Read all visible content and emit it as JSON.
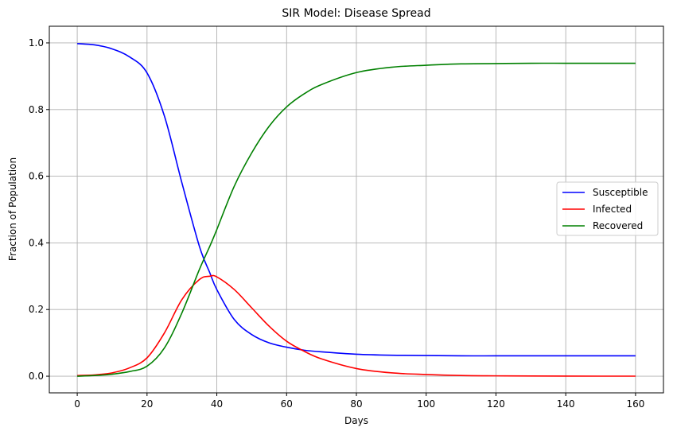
{
  "chart_data": {
    "type": "line",
    "title": "SIR Model: Disease Spread",
    "xlabel": "Days",
    "ylabel": "Fraction of Population",
    "xlim": [
      -8,
      168
    ],
    "ylim": [
      -0.05,
      1.05
    ],
    "xticks": [
      0,
      20,
      40,
      60,
      80,
      100,
      120,
      140,
      160
    ],
    "yticks": [
      0.0,
      0.2,
      0.4,
      0.6,
      0.8,
      1.0
    ],
    "grid": true,
    "legend_position": "center-right",
    "x": [
      0,
      5,
      10,
      15,
      20,
      25,
      30,
      35,
      38,
      40,
      45,
      50,
      55,
      60,
      65,
      70,
      80,
      90,
      100,
      110,
      120,
      130,
      140,
      150,
      160
    ],
    "series": [
      {
        "name": "Susceptible",
        "color": "#0000ff",
        "values": [
          0.998,
          0.994,
          0.982,
          0.958,
          0.91,
          0.78,
          0.58,
          0.39,
          0.31,
          0.26,
          0.17,
          0.125,
          0.1,
          0.087,
          0.078,
          0.073,
          0.066,
          0.063,
          0.062,
          0.061,
          0.061,
          0.061,
          0.061,
          0.061,
          0.061
        ]
      },
      {
        "name": "Infected",
        "color": "#ff0000",
        "values": [
          0.002,
          0.004,
          0.01,
          0.025,
          0.055,
          0.13,
          0.23,
          0.29,
          0.3,
          0.298,
          0.26,
          0.205,
          0.15,
          0.105,
          0.075,
          0.052,
          0.023,
          0.01,
          0.005,
          0.002,
          0.001,
          0.0005,
          0.0002,
          0.0001,
          0.0001
        ]
      },
      {
        "name": "Recovered",
        "color": "#008000",
        "values": [
          0.0,
          0.002,
          0.006,
          0.014,
          0.03,
          0.085,
          0.19,
          0.32,
          0.39,
          0.44,
          0.57,
          0.67,
          0.75,
          0.808,
          0.847,
          0.875,
          0.911,
          0.927,
          0.933,
          0.937,
          0.938,
          0.939,
          0.939,
          0.939,
          0.939
        ]
      }
    ]
  }
}
